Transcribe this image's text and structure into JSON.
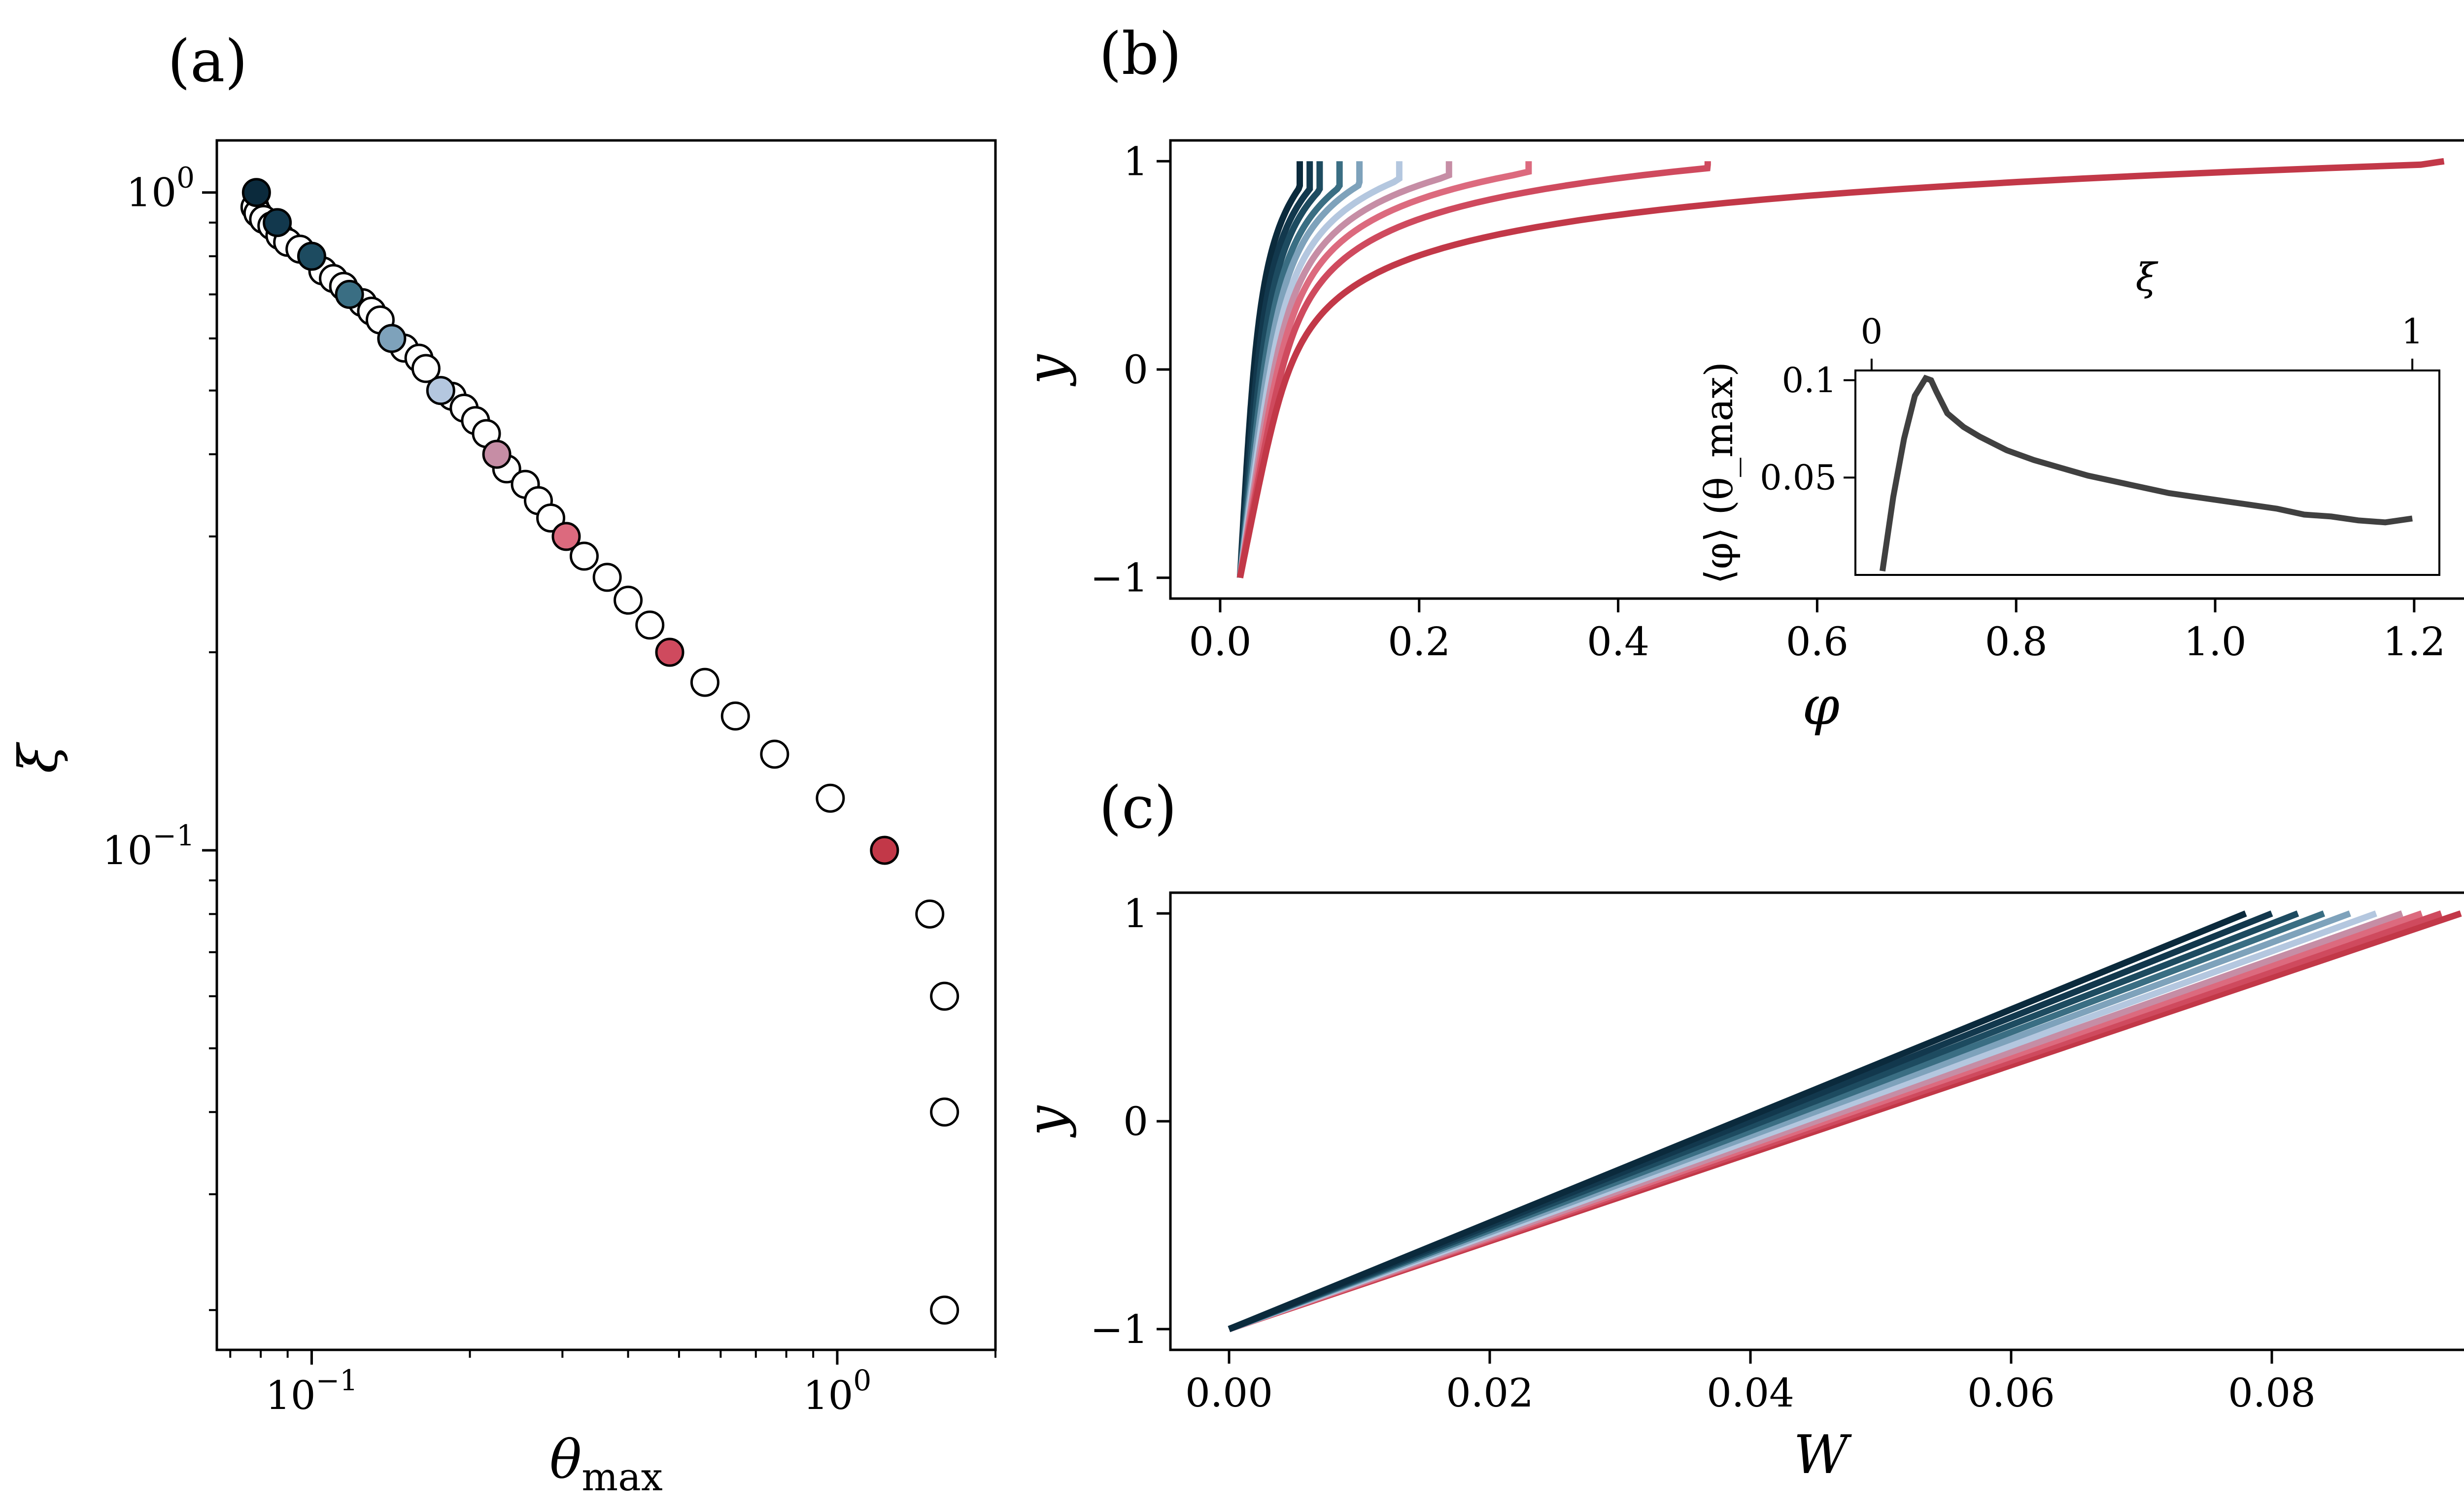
{
  "chart_data": [
    {
      "panel": "(a)",
      "type": "scatter",
      "xlabel": "θ_max",
      "ylabel": "ξ",
      "xscale": "log",
      "yscale": "log",
      "xlim": [
        0.066,
        2.0
      ],
      "ylim": [
        0.0174,
        1.2
      ],
      "xtick_labels": [
        "10^-1",
        "10^0"
      ],
      "ytick_labels": [
        "10^-1",
        "10^0"
      ],
      "grid": false,
      "points": [
        {
          "x": 0.078,
          "y": 0.95
        },
        {
          "x": 0.079,
          "y": 0.93
        },
        {
          "x": 0.081,
          "y": 0.91
        },
        {
          "x": 0.084,
          "y": 0.89
        },
        {
          "x": 0.087,
          "y": 0.86
        },
        {
          "x": 0.09,
          "y": 0.84
        },
        {
          "x": 0.095,
          "y": 0.82
        },
        {
          "x": 0.105,
          "y": 0.76
        },
        {
          "x": 0.11,
          "y": 0.74
        },
        {
          "x": 0.115,
          "y": 0.72
        },
        {
          "x": 0.125,
          "y": 0.68
        },
        {
          "x": 0.13,
          "y": 0.66
        },
        {
          "x": 0.135,
          "y": 0.64
        },
        {
          "x": 0.15,
          "y": 0.58
        },
        {
          "x": 0.16,
          "y": 0.56
        },
        {
          "x": 0.165,
          "y": 0.54
        },
        {
          "x": 0.185,
          "y": 0.49
        },
        {
          "x": 0.195,
          "y": 0.47
        },
        {
          "x": 0.205,
          "y": 0.45
        },
        {
          "x": 0.215,
          "y": 0.43
        },
        {
          "x": 0.235,
          "y": 0.38
        },
        {
          "x": 0.255,
          "y": 0.36
        },
        {
          "x": 0.27,
          "y": 0.34
        },
        {
          "x": 0.285,
          "y": 0.32
        },
        {
          "x": 0.33,
          "y": 0.28
        },
        {
          "x": 0.365,
          "y": 0.26
        },
        {
          "x": 0.4,
          "y": 0.24
        },
        {
          "x": 0.44,
          "y": 0.22
        },
        {
          "x": 0.56,
          "y": 0.18
        },
        {
          "x": 0.64,
          "y": 0.16
        },
        {
          "x": 0.76,
          "y": 0.14
        },
        {
          "x": 0.97,
          "y": 0.12
        },
        {
          "x": 1.5,
          "y": 0.08
        },
        {
          "x": 1.6,
          "y": 0.06
        },
        {
          "x": 1.6,
          "y": 0.04
        },
        {
          "x": 1.6,
          "y": 0.02
        }
      ],
      "highlighted": [
        {
          "x": 0.0785,
          "y": 1.0,
          "color": "#0b2a3c"
        },
        {
          "x": 0.086,
          "y": 0.9,
          "color": "#12384d"
        },
        {
          "x": 0.1,
          "y": 0.8,
          "color": "#1d4b60"
        },
        {
          "x": 0.118,
          "y": 0.7,
          "color": "#3a6e83"
        },
        {
          "x": 0.142,
          "y": 0.6,
          "color": "#7ea2bb"
        },
        {
          "x": 0.176,
          "y": 0.5,
          "color": "#b4c7df"
        },
        {
          "x": 0.225,
          "y": 0.4,
          "color": "#c68da5"
        },
        {
          "x": 0.305,
          "y": 0.3,
          "color": "#dc6a7e"
        },
        {
          "x": 0.48,
          "y": 0.2,
          "color": "#cf4a5e"
        },
        {
          "x": 1.23,
          "y": 0.1,
          "color": "#c23848"
        }
      ]
    },
    {
      "panel": "(b)",
      "type": "line",
      "xlabel": "φ",
      "ylabel": "y",
      "xlim": [
        -0.05,
        1.26
      ],
      "ylim": [
        -1.1,
        1.1
      ],
      "xticks": [
        "0.0",
        "0.2",
        "0.4",
        "0.6",
        "0.8",
        "1.0",
        "1.2"
      ],
      "yticks": [
        "−1",
        "0",
        "1"
      ],
      "series": [
        {
          "phi_at_top": 0.08,
          "color": "#0b2a3c"
        },
        {
          "phi_at_top": 0.09,
          "color": "#12384d"
        },
        {
          "phi_at_top": 0.1,
          "color": "#1d4b60"
        },
        {
          "phi_at_top": 0.12,
          "color": "#3a6e83"
        },
        {
          "phi_at_top": 0.14,
          "color": "#7ea2bb"
        },
        {
          "phi_at_top": 0.18,
          "color": "#b4c7df"
        },
        {
          "phi_at_top": 0.23,
          "color": "#c68da5"
        },
        {
          "phi_at_top": 0.31,
          "color": "#dc6a7e"
        },
        {
          "phi_at_top": 0.49,
          "color": "#cf4a5e"
        },
        {
          "phi_at_top": 1.23,
          "color": "#c23848"
        }
      ],
      "phi_at_bottom": 0.02,
      "inset": {
        "type": "line",
        "xlabel": "ξ",
        "ylabel": "⟨φ⟩ (θ_max)",
        "xlim": [
          -0.03,
          1.05
        ],
        "ylim": [
          0.0,
          0.105
        ],
        "xticks": [
          "0",
          "1"
        ],
        "yticks": [
          "0.1",
          "0.05"
        ],
        "color": "#404040",
        "x": [
          0.02,
          0.04,
          0.06,
          0.08,
          0.1,
          0.11,
          0.12,
          0.14,
          0.17,
          0.2,
          0.25,
          0.3,
          0.35,
          0.4,
          0.45,
          0.5,
          0.55,
          0.6,
          0.65,
          0.7,
          0.75,
          0.8,
          0.85,
          0.9,
          0.95,
          1.0
        ],
        "y": [
          0.002,
          0.04,
          0.07,
          0.092,
          0.101,
          0.1,
          0.094,
          0.083,
          0.076,
          0.071,
          0.064,
          0.059,
          0.055,
          0.051,
          0.048,
          0.045,
          0.042,
          0.04,
          0.038,
          0.036,
          0.034,
          0.031,
          0.03,
          0.028,
          0.027,
          0.029
        ]
      }
    },
    {
      "panel": "(c)",
      "type": "line",
      "xlabel": "W",
      "ylabel": "y",
      "xlim": [
        -0.0045,
        0.0955
      ],
      "ylim": [
        -1.1,
        1.1
      ],
      "xticks": [
        "0.00",
        "0.02",
        "0.04",
        "0.06",
        "0.08"
      ],
      "yticks": [
        "−1",
        "0",
        "1"
      ],
      "series": [
        {
          "W_at_top": 0.078,
          "color": "#0b2a3c"
        },
        {
          "W_at_top": 0.08,
          "color": "#12384d"
        },
        {
          "W_at_top": 0.082,
          "color": "#1d4b60"
        },
        {
          "W_at_top": 0.084,
          "color": "#3a6e83"
        },
        {
          "W_at_top": 0.086,
          "color": "#7ea2bb"
        },
        {
          "W_at_top": 0.088,
          "color": "#b4c7df"
        },
        {
          "W_at_top": 0.09,
          "color": "#c68da5"
        },
        {
          "W_at_top": 0.0915,
          "color": "#dc6a7e"
        },
        {
          "W_at_top": 0.093,
          "color": "#cf4a5e"
        },
        {
          "W_at_top": 0.0945,
          "color": "#c23848"
        }
      ]
    }
  ],
  "panel_labels": {
    "a": "(a)",
    "b": "(b)",
    "c": "(c)"
  }
}
